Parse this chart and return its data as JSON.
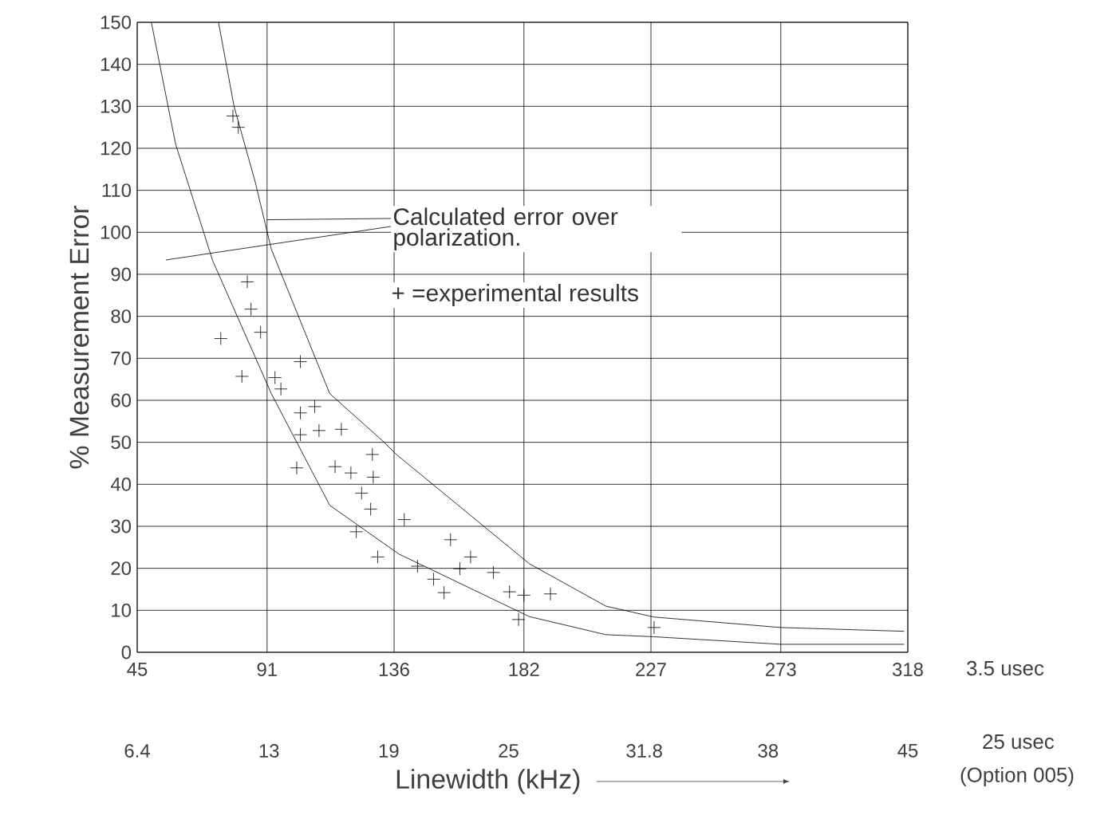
{
  "chart_data": {
    "type": "scatter",
    "xlabel": "Linewidth (kHz)",
    "ylabel": "% Measurement Error",
    "xlim": [
      45,
      318
    ],
    "xticks": [
      45,
      91,
      136,
      182,
      227,
      273,
      318
    ],
    "x2lim": [
      6.4,
      45
    ],
    "x2ticks": [
      6.4,
      13,
      19,
      25,
      31.8,
      38,
      45
    ],
    "ylim": [
      0,
      150
    ],
    "yticks": [
      0,
      10,
      20,
      30,
      40,
      50,
      60,
      70,
      80,
      90,
      100,
      110,
      120,
      130,
      140,
      150
    ],
    "grid": true,
    "annotations": [
      {
        "text": "Calculated error over polarization.",
        "x": 91,
        "y": 103
      },
      "+ =experimental results",
      "3.5 usec",
      "25 usec",
      "(Option 005)"
    ],
    "series": [
      {
        "type": "line",
        "color": "#000000",
        "marker": "none",
        "x": [
          73.8,
          79.3,
          86.8,
          92.5,
          113.2,
          132,
          137,
          183.9,
          211,
          228,
          273,
          316.7
        ],
        "values": [
          150,
          130,
          112,
          96,
          61.6,
          50.3,
          47,
          21.1,
          11,
          8.4,
          5.9,
          5.0
        ]
      },
      {
        "type": "line",
        "color": "#000000",
        "marker": "none",
        "x": [
          50,
          58.6,
          71.7,
          92.5,
          113.2,
          137.7,
          183.9,
          211,
          228,
          273,
          316.7
        ],
        "values": [
          150,
          121,
          93.3,
          61.6,
          35,
          23.4,
          8.5,
          4.2,
          3.7,
          1.9,
          1.9
        ]
      },
      {
        "color": "#000000",
        "marker": "cross",
        "x": [
          78.9,
          80.8,
          84,
          85.3,
          88.7,
          74.6,
          82.1,
          102.8,
          93.8,
          95.9,
          102.8,
          107.9,
          102.8,
          109.4,
          117.3,
          101.5,
          115.1,
          120.7,
          128.3,
          128.6,
          124.5,
          127.7,
          122.6,
          130.2,
          139.6,
          144.3,
          150,
          153.7,
          156,
          159.3,
          163.1,
          171.2,
          176.9,
          182,
          180.1,
          191.4,
          228.1
        ],
        "values": [
          127.7,
          125,
          88.2,
          81.7,
          76.2,
          74.7,
          65.7,
          69.2,
          65.4,
          62.7,
          57,
          58.5,
          51.8,
          52.8,
          53.1,
          43.9,
          44.2,
          42.7,
          47.1,
          41.7,
          37.9,
          34.1,
          28.7,
          22.7,
          31.6,
          20.5,
          17.4,
          14.2,
          26.8,
          19.9,
          22.7,
          19,
          14.4,
          13.6,
          7.8,
          13.9,
          5.9
        ]
      }
    ]
  }
}
